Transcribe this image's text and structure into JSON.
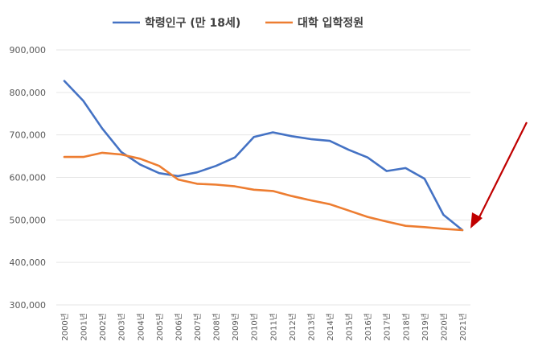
{
  "chart_data": {
    "type": "line",
    "x": [
      "2000년",
      "2001년",
      "2002년",
      "2003년",
      "2004년",
      "2005년",
      "2006년",
      "2007년",
      "2008년",
      "2009년",
      "2010년",
      "2011년",
      "2012년",
      "2013년",
      "2014년",
      "2015년",
      "2016년",
      "2017년",
      "2018년",
      "2019년",
      "2020년",
      "2021년"
    ],
    "series": [
      {
        "name": "학령인구 (만 18세)",
        "color": "#4472c4",
        "values": [
          827000,
          780000,
          715000,
          660000,
          630000,
          610000,
          603000,
          612000,
          627000,
          647000,
          695000,
          706000,
          697000,
          690000,
          686000,
          665000,
          647000,
          615000,
          622000,
          597000,
          512000,
          476000
        ]
      },
      {
        "name": "대학 입학정원",
        "color": "#ed7d31",
        "values": [
          648000,
          648000,
          658000,
          654000,
          644000,
          627000,
          595000,
          585000,
          583000,
          579000,
          571000,
          568000,
          556000,
          546000,
          537000,
          522000,
          507000,
          496000,
          486000,
          483000,
          479000,
          476000
        ]
      }
    ],
    "yticks": [
      "300,000",
      "400,000",
      "500,000",
      "600,000",
      "700,000",
      "800,000",
      "900,000"
    ],
    "ylim": [
      300000,
      900000
    ],
    "legend": "top-center",
    "grid": true,
    "annotation": {
      "type": "arrow",
      "color": "#c00000",
      "points_to": "2021년"
    }
  }
}
